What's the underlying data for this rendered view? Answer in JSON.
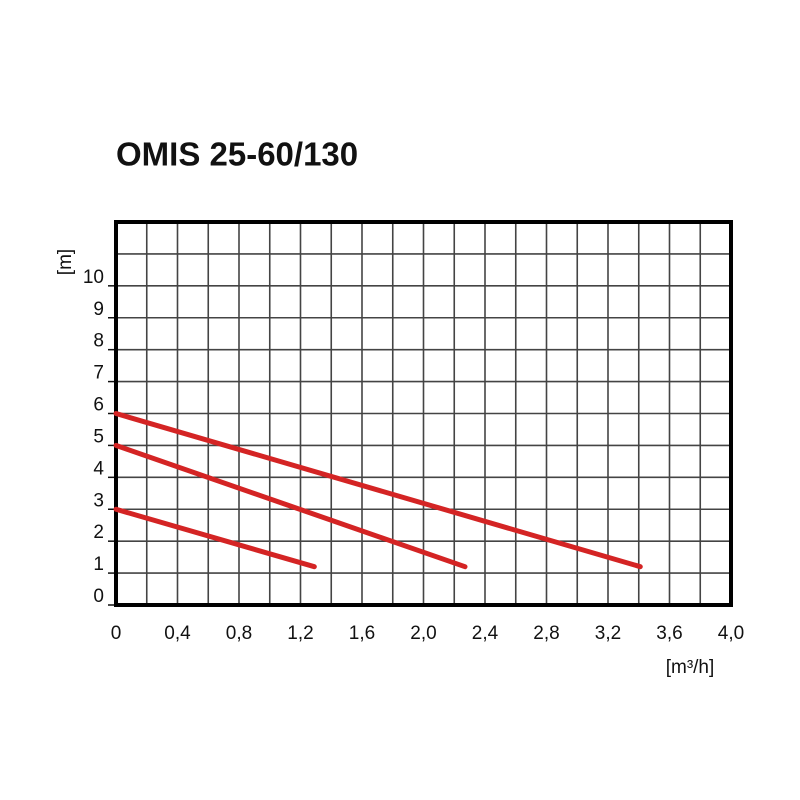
{
  "chart_data": {
    "type": "line",
    "title": "OMIS 25-60/130",
    "x_label": "[m³/h]",
    "y_label": "[m]",
    "xlim": [
      0,
      4
    ],
    "ylim": [
      0,
      12
    ],
    "xticks": [
      0,
      {
        "value": 0.4,
        "label": "0,4"
      },
      {
        "value": 0.8,
        "label": "0,8"
      },
      {
        "value": 1.2,
        "label": "1,2"
      },
      {
        "value": 1.6,
        "label": "1,6"
      },
      {
        "value": 2,
        "label": "2,0"
      },
      {
        "value": 2.4,
        "label": "2,4"
      },
      {
        "value": 2.8,
        "label": "2,8"
      },
      {
        "value": 3.2,
        "label": "3,2"
      },
      {
        "value": 3.6,
        "label": "3,6"
      },
      {
        "value": 4,
        "label": "4,0"
      }
    ],
    "yticks": [
      0,
      1,
      2,
      3,
      4,
      5,
      6,
      7,
      8,
      9,
      10
    ],
    "minor_xticks": [
      0.2,
      0.6,
      1.0,
      1.4,
      1.8,
      2.2,
      2.6,
      3.0,
      3.4,
      3.8
    ],
    "minor_yticks": [
      11
    ],
    "grid": true,
    "series": [
      {
        "color": "#d42424",
        "x": [
          0,
          1.29
        ],
        "values": [
          3,
          1.2
        ]
      },
      {
        "color": "#d42424",
        "x": [
          0,
          2.27
        ],
        "values": [
          5,
          1.2
        ]
      },
      {
        "color": "#d42424",
        "x": [
          0,
          3.41
        ],
        "values": [
          6,
          1.2
        ]
      }
    ]
  }
}
